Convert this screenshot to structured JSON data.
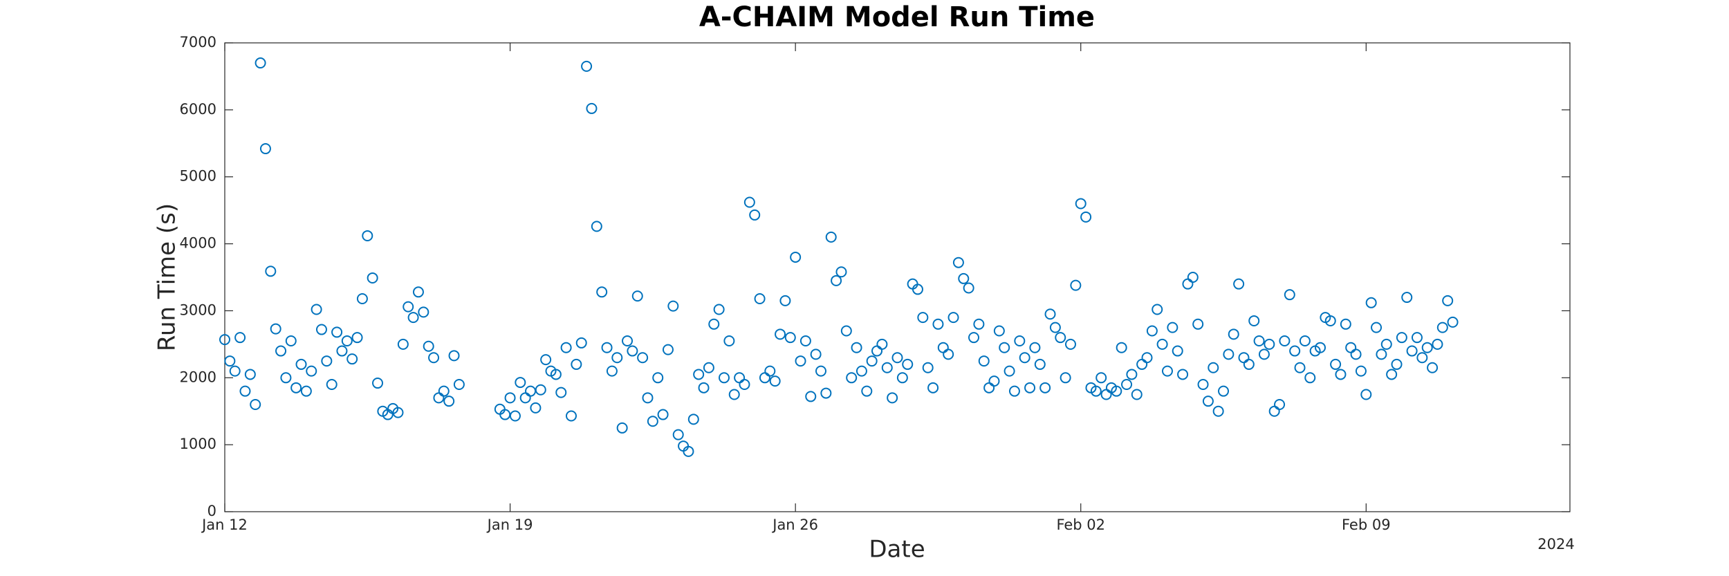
{
  "chart_data": {
    "type": "scatter",
    "title": "A-CHAIM Model Run Time",
    "xlabel": "Date",
    "ylabel": "Run Time (s)",
    "year_label": "2024",
    "color": "#0072BD",
    "grid": false,
    "xlim": [
      "2024-01-12T00:00",
      "2024-02-14T00:00"
    ],
    "xticks": [
      {
        "value": "2024-01-12T00:00",
        "label": "Jan 12"
      },
      {
        "value": "2024-01-19T00:00",
        "label": "Jan 19"
      },
      {
        "value": "2024-01-26T00:00",
        "label": "Jan 26"
      },
      {
        "value": "2024-02-02T00:00",
        "label": "Feb 02"
      },
      {
        "value": "2024-02-09T00:00",
        "label": "Feb 09"
      }
    ],
    "ylim": [
      0,
      7000
    ],
    "yticks": [
      0,
      1000,
      2000,
      3000,
      4000,
      5000,
      6000,
      7000
    ],
    "x": [
      "2024-01-12T00:00",
      "2024-01-12T03:00",
      "2024-01-12T06:00",
      "2024-01-12T09:00",
      "2024-01-12T12:00",
      "2024-01-12T15:00",
      "2024-01-12T18:00",
      "2024-01-12T21:00",
      "2024-01-13T00:00",
      "2024-01-13T03:00",
      "2024-01-13T06:00",
      "2024-01-13T09:00",
      "2024-01-13T12:00",
      "2024-01-13T15:00",
      "2024-01-13T18:00",
      "2024-01-13T21:00",
      "2024-01-14T00:00",
      "2024-01-14T03:00",
      "2024-01-14T06:00",
      "2024-01-14T09:00",
      "2024-01-14T12:00",
      "2024-01-14T15:00",
      "2024-01-14T18:00",
      "2024-01-14T21:00",
      "2024-01-15T00:00",
      "2024-01-15T03:00",
      "2024-01-15T06:00",
      "2024-01-15T09:00",
      "2024-01-15T12:00",
      "2024-01-15T15:00",
      "2024-01-15T18:00",
      "2024-01-15T21:00",
      "2024-01-16T00:00",
      "2024-01-16T03:00",
      "2024-01-16T06:00",
      "2024-01-16T09:00",
      "2024-01-16T12:00",
      "2024-01-16T15:00",
      "2024-01-16T18:00",
      "2024-01-16T21:00",
      "2024-01-17T00:00",
      "2024-01-17T03:00",
      "2024-01-17T06:00",
      "2024-01-17T09:00",
      "2024-01-17T12:00",
      "2024-01-17T15:00",
      "2024-01-17T18:00",
      "2024-01-18T18:00",
      "2024-01-18T21:00",
      "2024-01-19T00:00",
      "2024-01-19T03:00",
      "2024-01-19T06:00",
      "2024-01-19T09:00",
      "2024-01-19T12:00",
      "2024-01-19T15:00",
      "2024-01-19T18:00",
      "2024-01-19T21:00",
      "2024-01-20T00:00",
      "2024-01-20T03:00",
      "2024-01-20T06:00",
      "2024-01-20T09:00",
      "2024-01-20T12:00",
      "2024-01-20T15:00",
      "2024-01-20T18:00",
      "2024-01-20T21:00",
      "2024-01-21T00:00",
      "2024-01-21T03:00",
      "2024-01-21T06:00",
      "2024-01-21T09:00",
      "2024-01-21T12:00",
      "2024-01-21T15:00",
      "2024-01-21T18:00",
      "2024-01-21T21:00",
      "2024-01-22T00:00",
      "2024-01-22T03:00",
      "2024-01-22T06:00",
      "2024-01-22T09:00",
      "2024-01-22T12:00",
      "2024-01-22T15:00",
      "2024-01-22T18:00",
      "2024-01-22T21:00",
      "2024-01-23T00:00",
      "2024-01-23T03:00",
      "2024-01-23T06:00",
      "2024-01-23T09:00",
      "2024-01-23T12:00",
      "2024-01-23T15:00",
      "2024-01-23T18:00",
      "2024-01-23T21:00",
      "2024-01-24T00:00",
      "2024-01-24T03:00",
      "2024-01-24T06:00",
      "2024-01-24T09:00",
      "2024-01-24T12:00",
      "2024-01-24T15:00",
      "2024-01-24T18:00",
      "2024-01-24T21:00",
      "2024-01-25T00:00",
      "2024-01-25T03:00",
      "2024-01-25T06:00",
      "2024-01-25T09:00",
      "2024-01-25T12:00",
      "2024-01-25T15:00",
      "2024-01-25T18:00",
      "2024-01-25T21:00",
      "2024-01-26T00:00",
      "2024-01-26T03:00",
      "2024-01-26T06:00",
      "2024-01-26T09:00",
      "2024-01-26T12:00",
      "2024-01-26T15:00",
      "2024-01-26T18:00",
      "2024-01-26T21:00",
      "2024-01-27T00:00",
      "2024-01-27T03:00",
      "2024-01-27T06:00",
      "2024-01-27T09:00",
      "2024-01-27T12:00",
      "2024-01-27T15:00",
      "2024-01-27T18:00",
      "2024-01-27T21:00",
      "2024-01-28T00:00",
      "2024-01-28T03:00",
      "2024-01-28T06:00",
      "2024-01-28T09:00",
      "2024-01-28T12:00",
      "2024-01-28T15:00",
      "2024-01-28T18:00",
      "2024-01-28T21:00",
      "2024-01-29T00:00",
      "2024-01-29T03:00",
      "2024-01-29T06:00",
      "2024-01-29T09:00",
      "2024-01-29T12:00",
      "2024-01-29T15:00",
      "2024-01-29T18:00",
      "2024-01-29T21:00",
      "2024-01-30T00:00",
      "2024-01-30T03:00",
      "2024-01-30T06:00",
      "2024-01-30T09:00",
      "2024-01-30T12:00",
      "2024-01-30T15:00",
      "2024-01-30T18:00",
      "2024-01-30T21:00",
      "2024-01-31T00:00",
      "2024-01-31T03:00",
      "2024-01-31T06:00",
      "2024-01-31T09:00",
      "2024-01-31T12:00",
      "2024-01-31T15:00",
      "2024-01-31T18:00",
      "2024-01-31T21:00",
      "2024-02-01T00:00",
      "2024-02-01T03:00",
      "2024-02-01T06:00",
      "2024-02-01T09:00",
      "2024-02-01T12:00",
      "2024-02-01T15:00",
      "2024-02-01T18:00",
      "2024-02-01T21:00",
      "2024-02-02T00:00",
      "2024-02-02T03:00",
      "2024-02-02T06:00",
      "2024-02-02T09:00",
      "2024-02-02T12:00",
      "2024-02-02T15:00",
      "2024-02-02T18:00",
      "2024-02-02T21:00",
      "2024-02-03T00:00",
      "2024-02-03T03:00",
      "2024-02-03T06:00",
      "2024-02-03T09:00",
      "2024-02-03T12:00",
      "2024-02-03T15:00",
      "2024-02-03T18:00",
      "2024-02-03T21:00",
      "2024-02-04T00:00",
      "2024-02-04T03:00",
      "2024-02-04T06:00",
      "2024-02-04T09:00",
      "2024-02-04T12:00",
      "2024-02-04T15:00",
      "2024-02-04T18:00",
      "2024-02-04T21:00",
      "2024-02-05T00:00",
      "2024-02-05T03:00",
      "2024-02-05T06:00",
      "2024-02-05T09:00",
      "2024-02-05T12:00",
      "2024-02-05T15:00",
      "2024-02-05T18:00",
      "2024-02-05T21:00",
      "2024-02-06T00:00",
      "2024-02-06T03:00",
      "2024-02-06T06:00",
      "2024-02-06T09:00",
      "2024-02-06T12:00",
      "2024-02-06T15:00",
      "2024-02-06T18:00",
      "2024-02-06T21:00",
      "2024-02-07T00:00",
      "2024-02-07T03:00",
      "2024-02-07T06:00",
      "2024-02-07T09:00",
      "2024-02-07T12:00",
      "2024-02-07T15:00",
      "2024-02-07T18:00",
      "2024-02-07T21:00",
      "2024-02-08T00:00",
      "2024-02-08T03:00",
      "2024-02-08T06:00",
      "2024-02-08T09:00",
      "2024-02-08T12:00",
      "2024-02-08T15:00",
      "2024-02-08T18:00",
      "2024-02-08T21:00",
      "2024-02-09T00:00",
      "2024-02-09T03:00",
      "2024-02-09T06:00",
      "2024-02-09T09:00",
      "2024-02-09T12:00",
      "2024-02-09T15:00",
      "2024-02-09T18:00",
      "2024-02-09T21:00",
      "2024-02-10T00:00",
      "2024-02-10T03:00",
      "2024-02-10T06:00",
      "2024-02-10T09:00",
      "2024-02-10T12:00",
      "2024-02-10T15:00",
      "2024-02-10T18:00",
      "2024-02-10T21:00",
      "2024-02-11T00:00",
      "2024-02-11T03:00"
    ],
    "values": [
      2570,
      2250,
      2100,
      2600,
      1800,
      2050,
      1600,
      6700,
      5420,
      3590,
      2730,
      2400,
      2000,
      2550,
      1850,
      2200,
      1800,
      2100,
      3020,
      2720,
      2250,
      1900,
      2680,
      2400,
      2550,
      2280,
      2600,
      3180,
      4120,
      3490,
      1920,
      1500,
      1450,
      1540,
      1480,
      2500,
      3060,
      2900,
      3280,
      2980,
      2470,
      2300,
      1700,
      1800,
      1650,
      2330,
      1900,
      1530,
      1450,
      1700,
      1430,
      1930,
      1700,
      1800,
      1550,
      1820,
      2270,
      2100,
      2050,
      1780,
      2450,
      1430,
      2200,
      2520,
      6650,
      6020,
      4260,
      3280,
      2450,
      2100,
      2300,
      1250,
      2550,
      2400,
      3220,
      2300,
      1700,
      1350,
      2000,
      1450,
      2420,
      3070,
      1150,
      980,
      900,
      1380,
      2050,
      1850,
      2150,
      2800,
      3020,
      2000,
      2550,
      1750,
      2000,
      1900,
      4620,
      4430,
      3180,
      2000,
      2100,
      1950,
      2650,
      3150,
      2600,
      3800,
      2250,
      2550,
      1720,
      2350,
      2100,
      1770,
      4100,
      3450,
      3580,
      2700,
      2000,
      2450,
      2100,
      1800,
      2250,
      2400,
      2500,
      2150,
      1700,
      2300,
      2000,
      2200,
      3400,
      3320,
      2900,
      2150,
      1850,
      2800,
      2450,
      2350,
      2900,
      3720,
      3480,
      3340,
      2600,
      2800,
      2250,
      1850,
      1950,
      2700,
      2450,
      2100,
      1800,
      2550,
      2300,
      1850,
      2450,
      2200,
      1850,
      2950,
      2750,
      2600,
      2000,
      2500,
      3380,
      4600,
      4400,
      1850,
      1800,
      2000,
      1750,
      1850,
      1800,
      2450,
      1900,
      2050,
      1750,
      2200,
      2300,
      2700,
      3020,
      2500,
      2100,
      2750,
      2400,
      2050,
      3400,
      3500,
      2800,
      1900,
      1650,
      2150,
      1500,
      1800,
      2350,
      2650,
      3400,
      2300,
      2200,
      2850,
      2550,
      2350,
      2500,
      1500,
      1600,
      2550,
      3240,
      2400,
      2150,
      2550,
      2000,
      2400,
      2450,
      2900,
      2850,
      2200,
      2050,
      2800,
      2450,
      2350,
      2100,
      1750,
      3120,
      2750,
      2350,
      2500,
      2050,
      2200,
      2600,
      3200,
      2400,
      2600,
      2300,
      2450,
      2150,
      2500,
      2750,
      3150,
      2830
    ]
  }
}
